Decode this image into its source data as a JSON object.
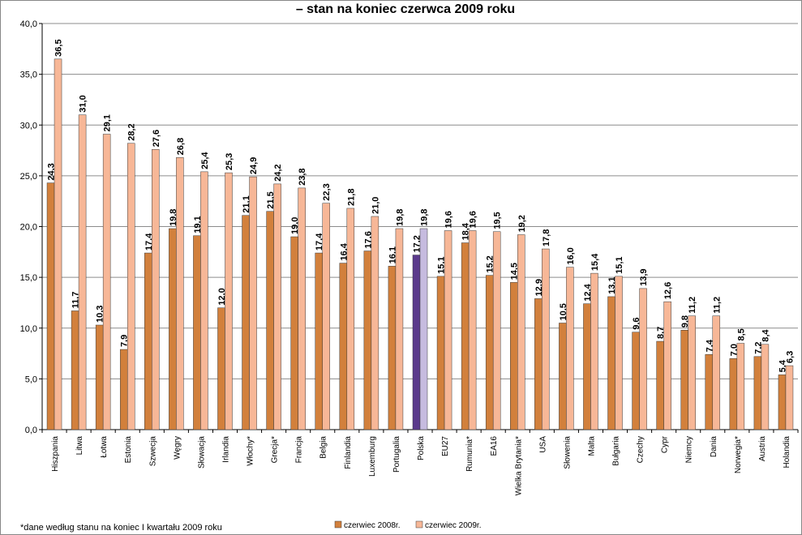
{
  "chart_data": {
    "type": "bar",
    "title": "– stan na koniec czerwca 2009 roku",
    "xlabel": "",
    "ylabel": "",
    "ylim": [
      0,
      40
    ],
    "yticks": [
      "0,0",
      "5,0",
      "10,0",
      "15,0",
      "20,0",
      "25,0",
      "30,0",
      "35,0",
      "40,0"
    ],
    "grid": true,
    "legend_position": "bottom",
    "categories": [
      "Hiszpania",
      "Litwa",
      "Łotwa",
      "Estonia",
      "Szwecja",
      "Węgry",
      "Słowacja",
      "Irlandia",
      "Włochy*",
      "Grecja*",
      "Francja",
      "Belgia",
      "Finlandia",
      "Luxemburg",
      "Portugalia",
      "Polska",
      "EU27",
      "Rumunia*",
      "EA16",
      "Wielka Brytania*",
      "USA",
      "Słowenia",
      "Malta",
      "Bułgaria",
      "Czechy",
      "Cypr",
      "Niemcy",
      "Dania",
      "Norwegia*",
      "Austria",
      "Holandia"
    ],
    "series": [
      {
        "name": "czerwiec 2008r.",
        "values": [
          24.3,
          11.7,
          10.3,
          7.9,
          17.4,
          19.8,
          19.1,
          12.0,
          21.1,
          21.5,
          19.0,
          17.4,
          16.4,
          17.6,
          16.1,
          17.2,
          15.1,
          18.4,
          15.2,
          14.5,
          12.9,
          10.5,
          12.4,
          13.1,
          9.6,
          8.7,
          9.8,
          7.4,
          7.0,
          7.2,
          5.4
        ],
        "labels": [
          "24,3",
          "11,7",
          "10,3",
          "7,9",
          "17,4",
          "19,8",
          "19,1",
          "12,0",
          "21,1",
          "21,5",
          "19,0",
          "17,4",
          "16,4",
          "17,6",
          "16,1",
          "17,2",
          "15,1",
          "18,4",
          "15,2",
          "14,5",
          "12,9",
          "10,5",
          "12,4",
          "13,1",
          "9,6",
          "8,7",
          "9,8",
          "7,4",
          "7,0",
          "7,2",
          "5,4"
        ]
      },
      {
        "name": "czerwiec 2009r.",
        "values": [
          36.5,
          31.0,
          29.1,
          28.2,
          27.6,
          26.8,
          25.4,
          25.3,
          24.9,
          24.2,
          23.8,
          22.3,
          21.8,
          21.0,
          19.8,
          19.8,
          19.6,
          19.6,
          19.5,
          19.2,
          17.8,
          16.0,
          15.4,
          15.1,
          13.9,
          12.6,
          11.2,
          11.2,
          8.5,
          8.4,
          6.3
        ],
        "labels": [
          "36,5",
          "31,0",
          "29,1",
          "28,2",
          "27,6",
          "26,8",
          "25,4",
          "25,3",
          "24,9",
          "24,2",
          "23,8",
          "22,3",
          "21,8",
          "21,0",
          "19,8",
          "19,8",
          "19,6",
          "19,6",
          "19,5",
          "19,2",
          "17,8",
          "16,0",
          "15,4",
          "15,1",
          "13,9",
          "12,6",
          "11,2",
          "11,2",
          "8,5",
          "8,4",
          "6,3"
        ]
      }
    ],
    "highlight_category": "Polska",
    "colors": {
      "series1": "#D2803C",
      "series2": "#F7B797",
      "highlight1": "#5B3A8C",
      "highlight2": "#C6BBDF",
      "grid": "#8C8C8C",
      "bar_stroke": "#3A3A3A"
    }
  },
  "footnote": "*dane według stanu na koniec I kwartału 2009 roku"
}
